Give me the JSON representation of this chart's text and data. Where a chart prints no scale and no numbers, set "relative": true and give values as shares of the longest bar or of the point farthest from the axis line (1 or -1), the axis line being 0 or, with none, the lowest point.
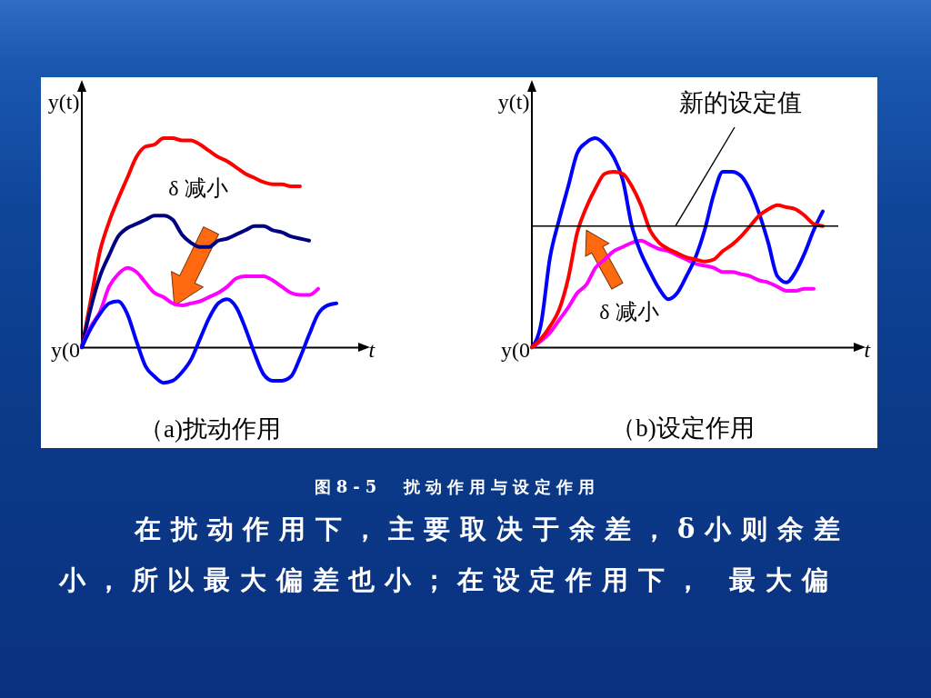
{
  "chart_data": [
    {
      "type": "line",
      "title": "（a)扰动作用",
      "xlabel": "t",
      "ylabel": "y(t)",
      "relative": true,
      "categories": [
        null,
        null,
        null,
        null,
        null,
        null,
        null,
        null,
        null,
        null,
        null,
        null,
        null,
        null,
        null,
        null,
        null,
        null,
        null,
        null,
        null,
        null,
        null,
        null,
        null,
        null,
        null,
        null,
        null,
        null,
        null,
        null
      ],
      "series": [
        {
          "color": "#ff0000",
          "values": [
            0,
            0.23,
            0.46,
            0.6,
            0.71,
            0.81,
            0.91,
            0.96,
            0.97,
            1.0,
            1.0,
            0.99,
            0.99,
            0.97,
            0.94,
            0.91,
            0.89,
            0.86,
            0.83,
            0.81,
            0.79,
            0.78,
            0.78,
            0.77,
            0.77,
            null,
            null,
            null,
            null,
            null,
            null,
            null
          ]
        },
        {
          "color": "#000080",
          "values": [
            0,
            0.19,
            0.34,
            0.44,
            0.53,
            0.57,
            0.59,
            0.61,
            0.63,
            0.63,
            0.61,
            0.54,
            0.5,
            0.48,
            0.48,
            0.51,
            0.52,
            0.54,
            0.56,
            0.58,
            0.58,
            0.56,
            0.55,
            0.53,
            0.52,
            0.51,
            null,
            null,
            null,
            null,
            null,
            null
          ]
        },
        {
          "color": "#ff00ff",
          "values": [
            0,
            0.1,
            0.17,
            0.29,
            0.35,
            0.38,
            0.36,
            0.31,
            0.26,
            0.24,
            0.21,
            0.2,
            0.21,
            0.22,
            0.24,
            0.26,
            0.29,
            0.33,
            0.34,
            0.34,
            0.34,
            0.32,
            0.29,
            0.26,
            0.25,
            0.25,
            0.28,
            null,
            null,
            null,
            null,
            null
          ]
        },
        {
          "color": "#0000ff",
          "values": [
            0,
            0.09,
            0.16,
            0.21,
            0.22,
            0.16,
            0.03,
            -0.09,
            -0.14,
            -0.17,
            -0.16,
            -0.12,
            -0.06,
            0.04,
            0.14,
            0.21,
            0.23,
            0.19,
            0.09,
            -0.03,
            -0.13,
            -0.16,
            -0.16,
            -0.14,
            -0.05,
            0.06,
            0.16,
            0.2,
            0.21,
            null,
            null,
            null
          ]
        }
      ],
      "annotations": [
        "y(0",
        "δ 减小"
      ]
    },
    {
      "type": "line",
      "title": "（b)设定作用",
      "xlabel": "t",
      "ylabel": "y(t)",
      "relative": true,
      "categories": [
        null,
        null,
        null,
        null,
        null,
        null,
        null,
        null,
        null,
        null,
        null,
        null,
        null,
        null,
        null,
        null,
        null,
        null,
        null,
        null,
        null,
        null,
        null,
        null,
        null,
        null,
        null,
        null,
        null,
        null,
        null,
        null,
        null,
        null,
        null,
        null,
        null
      ],
      "series": [
        {
          "color": "#ff00ff",
          "values": [
            0,
            0.03,
            0.07,
            0.13,
            0.19,
            0.26,
            0.3,
            0.38,
            0.42,
            0.46,
            0.48,
            0.5,
            0.51,
            0.49,
            0.47,
            0.46,
            0.44,
            0.42,
            0.4,
            0.39,
            0.38,
            0.36,
            0.36,
            0.35,
            0.34,
            0.32,
            0.31,
            0.29,
            0.27,
            0.27,
            0.28,
            0.28,
            null,
            null,
            null,
            null,
            null
          ]
        },
        {
          "color": "#0000ff",
          "values": [
            0,
            0.11,
            0.43,
            0.61,
            0.77,
            0.93,
            0.98,
            1.0,
            0.97,
            0.91,
            0.8,
            0.58,
            0.45,
            0.36,
            0.28,
            0.23,
            0.26,
            0.34,
            0.43,
            0.56,
            0.73,
            0.84,
            0.84,
            0.82,
            0.75,
            0.64,
            0.5,
            0.34,
            0.31,
            0.36,
            0.45,
            0.56,
            0.65,
            null,
            null,
            null,
            null
          ]
        },
        {
          "color": "#ff0000",
          "values": [
            0,
            0.04,
            0.1,
            0.18,
            0.33,
            0.55,
            0.67,
            0.76,
            0.83,
            0.84,
            0.83,
            0.77,
            0.68,
            0.56,
            0.5,
            0.47,
            0.45,
            0.43,
            0.42,
            0.41,
            0.42,
            0.46,
            0.49,
            0.53,
            0.58,
            0.63,
            0.66,
            0.68,
            0.67,
            0.66,
            0.63,
            0.59,
            0.58,
            null,
            null,
            null,
            null
          ]
        }
      ],
      "ref_lines": [
        {
          "axis": "y",
          "value": 0.58,
          "label": "新的设定值",
          "color": "#000000"
        }
      ],
      "annotations": [
        "y(0",
        "δ 减小"
      ]
    },
    {
      "type": "other",
      "annotations": [
        "图8-5　扰动作用与设定作用",
        "在扰动作用下，主要取决于余差，δ小则余差小，所以最大偏差也小；在设定作用下， 最大偏"
      ]
    }
  ]
}
